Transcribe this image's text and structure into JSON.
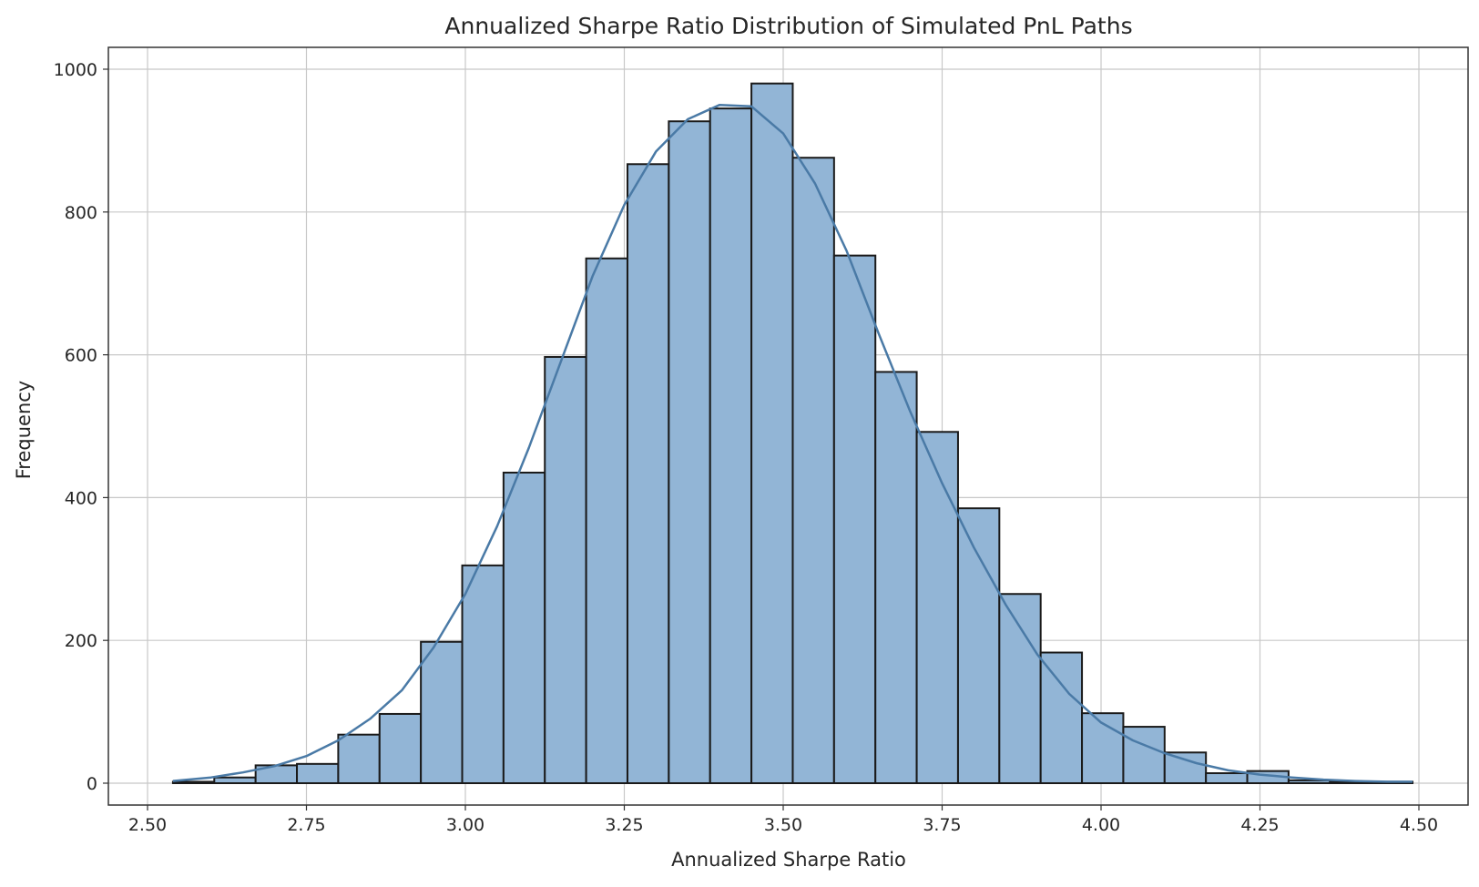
{
  "chart_data": {
    "type": "bar",
    "title": "Annualized Sharpe Ratio Distribution of Simulated PnL Paths",
    "xlabel": "Annualized Sharpe Ratio",
    "ylabel": "Frequency",
    "xlim": [
      2.5,
      4.5
    ],
    "ylim": [
      0,
      1000
    ],
    "xticks": [
      "2.50",
      "2.75",
      "3.00",
      "3.25",
      "3.50",
      "3.75",
      "4.00",
      "4.25",
      "4.50"
    ],
    "yticks": [
      "0",
      "200",
      "400",
      "600",
      "800",
      "1000"
    ],
    "grid": true,
    "bins": [
      {
        "x0": 2.54,
        "x1": 2.605,
        "count": 2
      },
      {
        "x0": 2.605,
        "x1": 2.67,
        "count": 8
      },
      {
        "x0": 2.67,
        "x1": 2.735,
        "count": 25
      },
      {
        "x0": 2.735,
        "x1": 2.8,
        "count": 27
      },
      {
        "x0": 2.8,
        "x1": 2.865,
        "count": 68
      },
      {
        "x0": 2.865,
        "x1": 2.93,
        "count": 97
      },
      {
        "x0": 2.93,
        "x1": 2.995,
        "count": 198
      },
      {
        "x0": 2.995,
        "x1": 3.06,
        "count": 305
      },
      {
        "x0": 3.06,
        "x1": 3.125,
        "count": 435
      },
      {
        "x0": 3.125,
        "x1": 3.19,
        "count": 597
      },
      {
        "x0": 3.19,
        "x1": 3.255,
        "count": 735
      },
      {
        "x0": 3.255,
        "x1": 3.32,
        "count": 867
      },
      {
        "x0": 3.32,
        "x1": 3.385,
        "count": 927
      },
      {
        "x0": 3.385,
        "x1": 3.45,
        "count": 945
      },
      {
        "x0": 3.45,
        "x1": 3.515,
        "count": 980
      },
      {
        "x0": 3.515,
        "x1": 3.58,
        "count": 876
      },
      {
        "x0": 3.58,
        "x1": 3.645,
        "count": 739
      },
      {
        "x0": 3.645,
        "x1": 3.71,
        "count": 576
      },
      {
        "x0": 3.71,
        "x1": 3.775,
        "count": 492
      },
      {
        "x0": 3.775,
        "x1": 3.84,
        "count": 385
      },
      {
        "x0": 3.84,
        "x1": 3.905,
        "count": 265
      },
      {
        "x0": 3.905,
        "x1": 3.97,
        "count": 183
      },
      {
        "x0": 3.97,
        "x1": 4.035,
        "count": 98
      },
      {
        "x0": 4.035,
        "x1": 4.1,
        "count": 79
      },
      {
        "x0": 4.1,
        "x1": 4.165,
        "count": 43
      },
      {
        "x0": 4.165,
        "x1": 4.23,
        "count": 14
      },
      {
        "x0": 4.23,
        "x1": 4.295,
        "count": 17
      },
      {
        "x0": 4.295,
        "x1": 4.36,
        "count": 4
      },
      {
        "x0": 4.36,
        "x1": 4.425,
        "count": 2
      },
      {
        "x0": 4.425,
        "x1": 4.49,
        "count": 2
      }
    ],
    "kde": [
      {
        "x": 2.54,
        "y": 3
      },
      {
        "x": 2.6,
        "y": 8
      },
      {
        "x": 2.65,
        "y": 15
      },
      {
        "x": 2.7,
        "y": 24
      },
      {
        "x": 2.75,
        "y": 38
      },
      {
        "x": 2.8,
        "y": 60
      },
      {
        "x": 2.85,
        "y": 90
      },
      {
        "x": 2.9,
        "y": 130
      },
      {
        "x": 2.95,
        "y": 190
      },
      {
        "x": 3.0,
        "y": 265
      },
      {
        "x": 3.05,
        "y": 360
      },
      {
        "x": 3.1,
        "y": 470
      },
      {
        "x": 3.15,
        "y": 590
      },
      {
        "x": 3.2,
        "y": 710
      },
      {
        "x": 3.25,
        "y": 810
      },
      {
        "x": 3.3,
        "y": 885
      },
      {
        "x": 3.35,
        "y": 930
      },
      {
        "x": 3.4,
        "y": 950
      },
      {
        "x": 3.45,
        "y": 948
      },
      {
        "x": 3.5,
        "y": 910
      },
      {
        "x": 3.55,
        "y": 840
      },
      {
        "x": 3.6,
        "y": 745
      },
      {
        "x": 3.65,
        "y": 630
      },
      {
        "x": 3.7,
        "y": 520
      },
      {
        "x": 3.75,
        "y": 420
      },
      {
        "x": 3.8,
        "y": 330
      },
      {
        "x": 3.85,
        "y": 250
      },
      {
        "x": 3.9,
        "y": 180
      },
      {
        "x": 3.95,
        "y": 125
      },
      {
        "x": 4.0,
        "y": 85
      },
      {
        "x": 4.05,
        "y": 60
      },
      {
        "x": 4.1,
        "y": 42
      },
      {
        "x": 4.15,
        "y": 28
      },
      {
        "x": 4.2,
        "y": 18
      },
      {
        "x": 4.25,
        "y": 12
      },
      {
        "x": 4.3,
        "y": 8
      },
      {
        "x": 4.35,
        "y": 5
      },
      {
        "x": 4.4,
        "y": 3
      },
      {
        "x": 4.45,
        "y": 2
      },
      {
        "x": 4.49,
        "y": 2
      }
    ],
    "colors": {
      "bar_fill": "#92b5d6",
      "bar_edge": "#1a1a1a",
      "kde_line": "#4a7aa6",
      "grid": "#c8c8c8",
      "axes": "#333333"
    }
  }
}
